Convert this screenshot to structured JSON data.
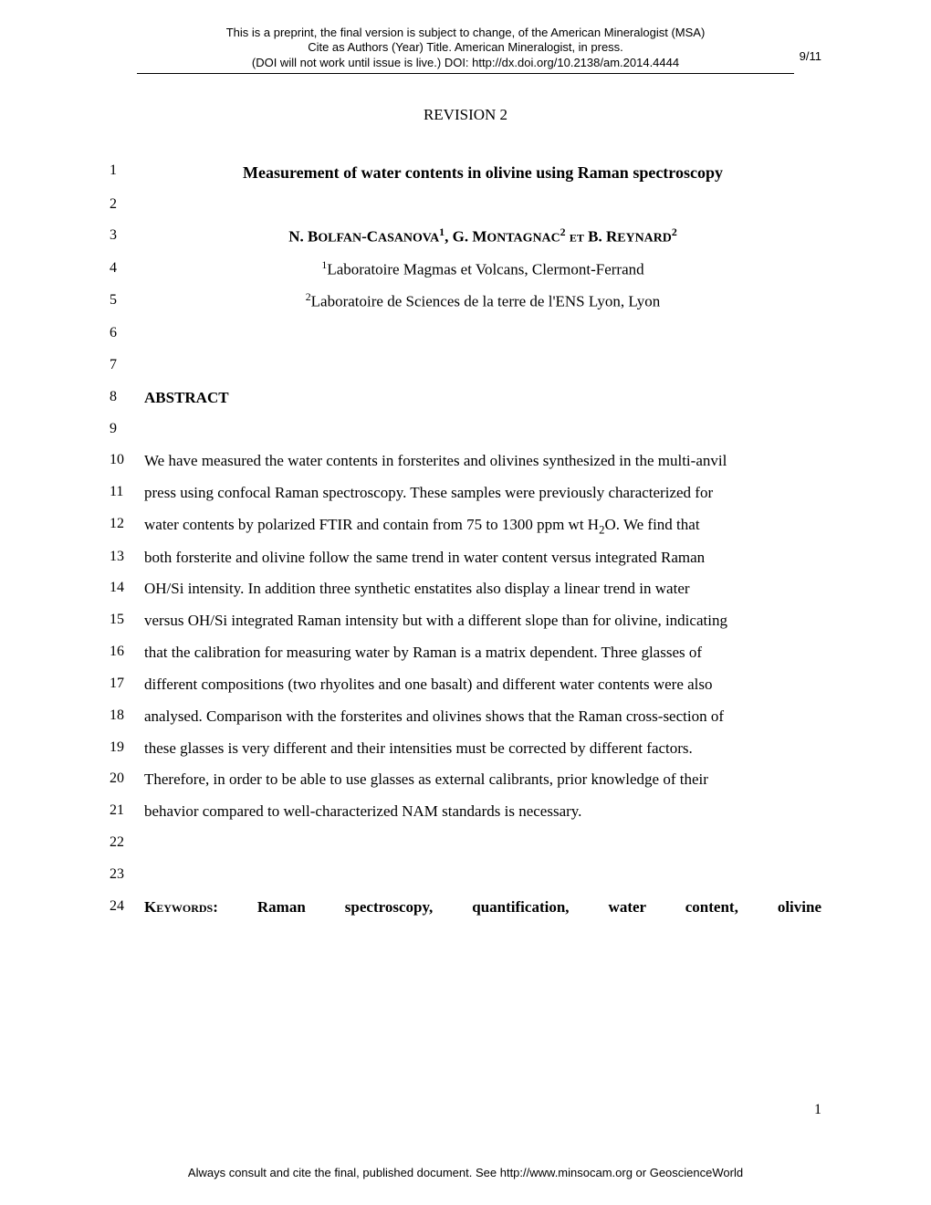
{
  "preprint_header": {
    "line1": "This is a preprint, the final version is subject to change, of the American Mineralogist (MSA)",
    "line2": "Cite as Authors (Year) Title. American Mineralogist, in press.",
    "line3": "(DOI will not work until issue is live.) DOI: http://dx.doi.org/10.2138/am.2014.4444"
  },
  "date_right": "9/11",
  "revision_heading": "REVISION 2",
  "lines": {
    "n1": "1",
    "title": "Measurement of water contents in olivine using Raman spectroscopy",
    "n2": "2",
    "n3": "3",
    "authors_pre": "N. B",
    "authors_a": "olfan",
    "authors_b": "-C",
    "authors_c": "asanova",
    "authors_sup1": "1",
    "authors_d": ", G. M",
    "authors_e": "ontagnac",
    "authors_sup2": "2",
    "authors_f": " et B. R",
    "authors_g": "eynard",
    "authors_sup3": "2",
    "n4": "4",
    "affil1_sup": "1",
    "affil1": "Laboratoire Magmas et Volcans, Clermont-Ferrand",
    "n5": "5",
    "affil2_sup": "2",
    "affil2": "Laboratoire de Sciences de la terre de l'ENS Lyon, Lyon",
    "n6": "6",
    "n7": "7",
    "n8": "8",
    "abstract_head": "ABSTRACT",
    "n9": "9",
    "n10": "10",
    "p10": "We have measured the water contents in forsterites and olivines synthesized in the multi-anvil",
    "n11": "11",
    "p11": "press using confocal Raman spectroscopy. These samples were previously characterized for",
    "n12": "12",
    "p12a": "water contents by polarized FTIR and contain from 75 to 1300 ppm wt H",
    "p12sub": "2",
    "p12b": "O. We find that",
    "n13": "13",
    "p13": "both forsterite and olivine follow the same trend in water content versus integrated Raman",
    "n14": "14",
    "p14": "OH/Si intensity. In addition three synthetic enstatites also display a linear trend in water",
    "n15": "15",
    "p15": "versus OH/Si integrated Raman intensity but with a different slope than for olivine, indicating",
    "n16": "16",
    "p16": "that the calibration for measuring water by Raman is a matrix dependent. Three glasses of",
    "n17": "17",
    "p17": "different compositions (two rhyolites and one basalt) and different water contents were also",
    "n18": "18",
    "p18": "analysed. Comparison with the forsterites and olivines shows that the Raman cross-section of",
    "n19": "19",
    "p19": "these glasses is very different and their intensities must be corrected by different factors.",
    "n20": "20",
    "p20": "Therefore, in order to be able to use glasses as external calibrants, prior knowledge of their",
    "n21": "21",
    "p21": "behavior compared to well-characterized NAM standards is necessary.",
    "n22": "22",
    "n23": "23",
    "n24": "24",
    "kw_label": "Keywords:",
    "kw_body": "Raman spectroscopy, quantification, water content, olivine"
  },
  "page_number": "1",
  "footer_note": "Always consult and cite the final, published document. See http://www.minsocam.org or GeoscienceWorld"
}
